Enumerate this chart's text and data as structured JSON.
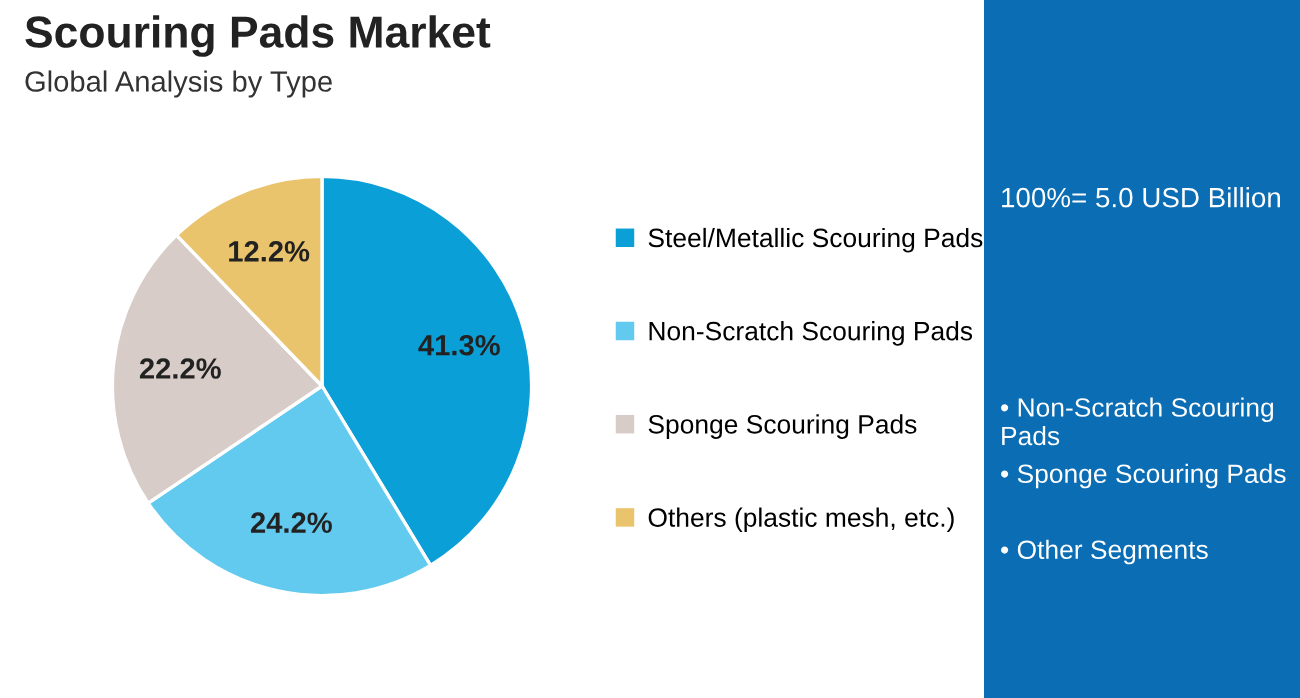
{
  "chart_data": {
    "type": "pie",
    "title": "Scouring Pads Market",
    "subtitle": "Global Analysis by Type",
    "categories": [
      "Steel/Metallic Scouring Pads",
      "Non-Scratch Scouring Pads",
      "Sponge Scouring Pads",
      "Others (plastic mesh, etc.)"
    ],
    "values": [
      41.3,
      24.2,
      22.2,
      12.2
    ],
    "value_labels": [
      "41.3%",
      "24.2%",
      "22.2%",
      "12.2%"
    ],
    "colors": [
      "#0a9fd6",
      "#62c9ef",
      "#d8ccc8",
      "#e9c46c"
    ],
    "legend": "right",
    "annotations": [
      "100%= 5.0 USD Billion",
      "• Non-Scratch Scouring Pads",
      "• Sponge Scouring Pads",
      "• Other Segments"
    ]
  }
}
